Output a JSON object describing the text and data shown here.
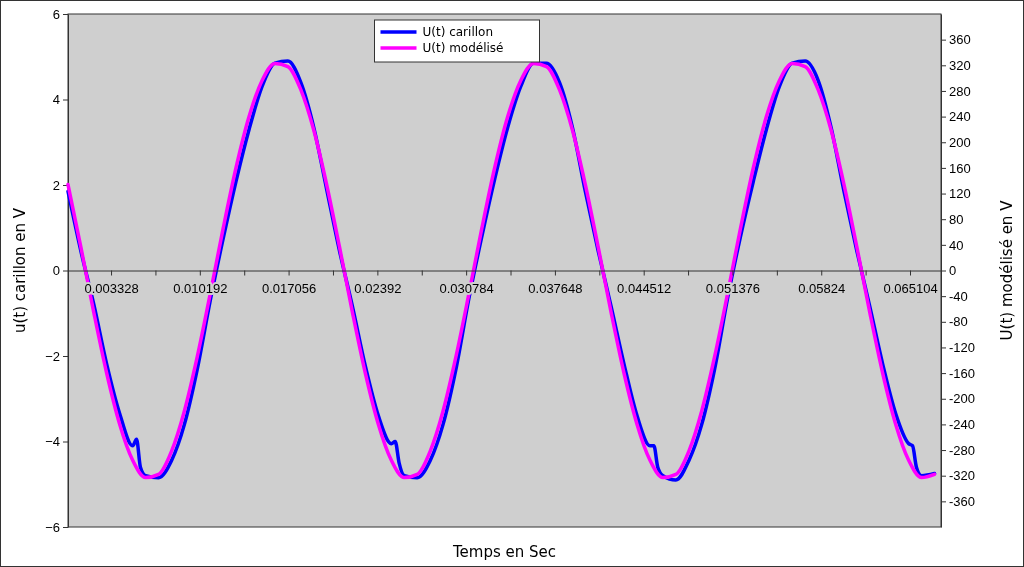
{
  "chart_data": {
    "type": "line",
    "xlabel": "Temps en Sec",
    "ylabel": "u(t) carillon en V",
    "y2label": "U(t) modélisé en V",
    "xlim": [
      0,
      0.0675
    ],
    "xticks": [
      0.003328,
      {
        "value": 0.00676,
        "label": null
      },
      0.010192,
      {
        "value": 0.013624,
        "label": null
      },
      0.017056,
      {
        "value": 0.020488,
        "label": null
      },
      0.02392,
      {
        "value": 0.027352,
        "label": null
      },
      0.030784,
      {
        "value": 0.034216,
        "label": null
      },
      0.037648,
      {
        "value": 0.04108,
        "label": null
      },
      0.044512,
      {
        "value": 0.047944,
        "label": null
      },
      0.051376,
      {
        "value": 0.054808,
        "label": null
      },
      0.05824,
      {
        "value": 0.061672,
        "label": null
      },
      0.065104
    ],
    "ylim": [
      -6,
      6
    ],
    "yticks": [
      {
        "value": -6,
        "label": "−6"
      },
      {
        "value": -4,
        "label": "−4"
      },
      {
        "value": -2,
        "label": "−2"
      },
      0,
      2,
      4,
      6
    ],
    "y2lim": [
      -400,
      400
    ],
    "y2ticks": [
      -360,
      -320,
      -280,
      -240,
      -200,
      -160,
      -120,
      -80,
      -40,
      0,
      40,
      80,
      120,
      160,
      200,
      240,
      280,
      320,
      360
    ],
    "grid": false,
    "legend": "top",
    "line_style": "solid",
    "marker": "none",
    "series": [
      {
        "name": "U(t) carillon",
        "color": "#0000ff",
        "x": [
          0,
          0.001,
          0.002,
          0.003,
          0.004,
          0.005,
          0.0053,
          0.0056,
          0.006,
          0.007,
          0.008,
          0.009,
          0.01,
          0.011,
          0.012,
          0.013,
          0.014,
          0.015,
          0.016,
          0.017,
          0.018,
          0.019,
          0.02,
          0.021,
          0.022,
          0.023,
          0.024,
          0.025,
          0.0253,
          0.0256,
          0.026,
          0.027,
          0.028,
          0.029,
          0.03,
          0.031,
          0.032,
          0.033,
          0.034,
          0.035,
          0.036,
          0.037,
          0.038,
          0.039,
          0.04,
          0.041,
          0.042,
          0.043,
          0.044,
          0.045,
          0.0453,
          0.0456,
          0.046,
          0.047,
          0.048,
          0.049,
          0.05,
          0.051,
          0.052,
          0.053,
          0.054,
          0.055,
          0.056,
          0.057,
          0.058,
          0.059,
          0.06,
          0.061,
          0.062,
          0.063,
          0.064,
          0.065,
          0.0653,
          0.0656,
          0.066,
          0.067
        ],
        "values": [
          1.85,
          0.45,
          -0.8,
          -2.2,
          -3.35,
          -4.1,
          -3.95,
          -4.6,
          -4.8,
          -4.85,
          -4.45,
          -3.6,
          -2.3,
          -0.7,
          0.75,
          2.1,
          3.3,
          4.3,
          4.85,
          4.9,
          4.4,
          3.35,
          1.9,
          0.45,
          -0.85,
          -2.25,
          -3.4,
          -4.05,
          -4.0,
          -4.5,
          -4.8,
          -4.85,
          -4.45,
          -3.6,
          -2.3,
          -0.65,
          0.8,
          2.15,
          3.35,
          4.3,
          4.85,
          4.85,
          4.4,
          3.35,
          1.85,
          0.45,
          -0.85,
          -2.2,
          -3.4,
          -4.1,
          -4.1,
          -4.6,
          -4.8,
          -4.9,
          -4.45,
          -3.6,
          -2.3,
          -0.65,
          0.8,
          2.1,
          3.3,
          4.3,
          4.85,
          4.9,
          4.45,
          3.35,
          1.85,
          0.45,
          -0.85,
          -2.2,
          -3.35,
          -4.05,
          -4.1,
          -4.6,
          -4.8,
          -4.75
        ]
      },
      {
        "name": "U(t) modélisé",
        "color": "#ff00ff",
        "axis": "y2",
        "x": [
          0,
          0.001,
          0.002,
          0.003,
          0.004,
          0.005,
          0.006,
          0.007,
          0.008,
          0.009,
          0.01,
          0.011,
          0.012,
          0.013,
          0.014,
          0.015,
          0.016,
          0.017,
          0.018,
          0.019,
          0.02,
          0.021,
          0.022,
          0.023,
          0.024,
          0.025,
          0.026,
          0.027,
          0.028,
          0.029,
          0.03,
          0.031,
          0.032,
          0.033,
          0.034,
          0.035,
          0.036,
          0.037,
          0.038,
          0.039,
          0.04,
          0.041,
          0.042,
          0.043,
          0.044,
          0.045,
          0.046,
          0.047,
          0.048,
          0.049,
          0.05,
          0.051,
          0.052,
          0.053,
          0.054,
          0.055,
          0.056,
          0.057,
          0.058,
          0.059,
          0.06,
          0.061,
          0.062,
          0.063,
          0.064,
          0.065,
          0.066,
          0.067
        ],
        "values": [
          134,
          36,
          -66,
          -161,
          -240,
          -296,
          -323,
          -318,
          -282,
          -219,
          -134,
          -36,
          66,
          161,
          240,
          296,
          323,
          318,
          282,
          219,
          134,
          36,
          -66,
          -161,
          -240,
          -296,
          -323,
          -318,
          -282,
          -219,
          -134,
          -36,
          66,
          161,
          240,
          296,
          323,
          318,
          282,
          219,
          134,
          36,
          -66,
          -161,
          -240,
          -296,
          -323,
          -318,
          -282,
          -219,
          -134,
          -36,
          66,
          161,
          240,
          296,
          323,
          318,
          282,
          219,
          134,
          36,
          -66,
          -161,
          -240,
          -296,
          -323,
          -318
        ]
      }
    ]
  }
}
